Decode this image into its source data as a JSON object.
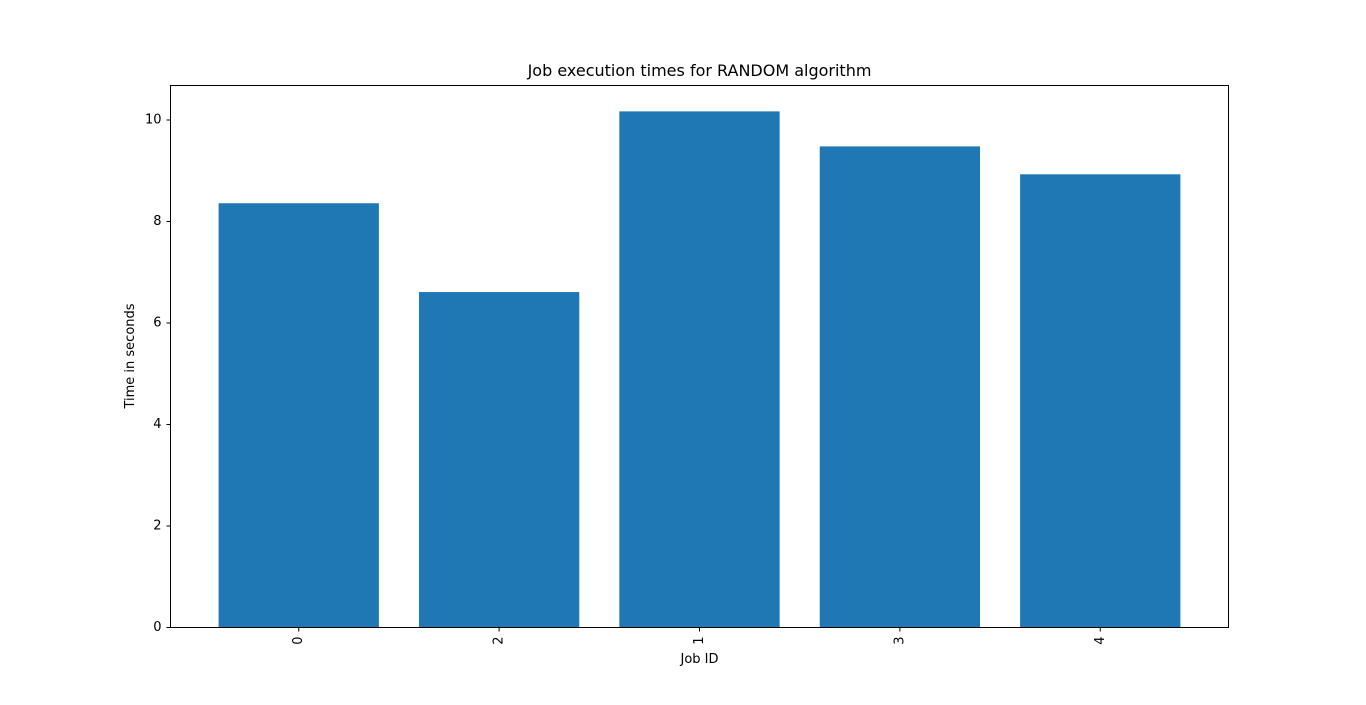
{
  "chart_data": {
    "type": "bar",
    "title": "Job execution times for RANDOM algorithm",
    "xlabel": "Job ID",
    "ylabel": "Time in seconds",
    "categories": [
      "0",
      "2",
      "1",
      "3",
      "4"
    ],
    "values": [
      8.36,
      6.61,
      10.17,
      9.48,
      8.93
    ],
    "ylim": [
      0,
      10.68
    ],
    "yticks": [
      0,
      2,
      4,
      6,
      8,
      10
    ],
    "xtick_rotation": "vertical",
    "grid": false,
    "legend": "none",
    "bar_color": "#1f77b4"
  }
}
